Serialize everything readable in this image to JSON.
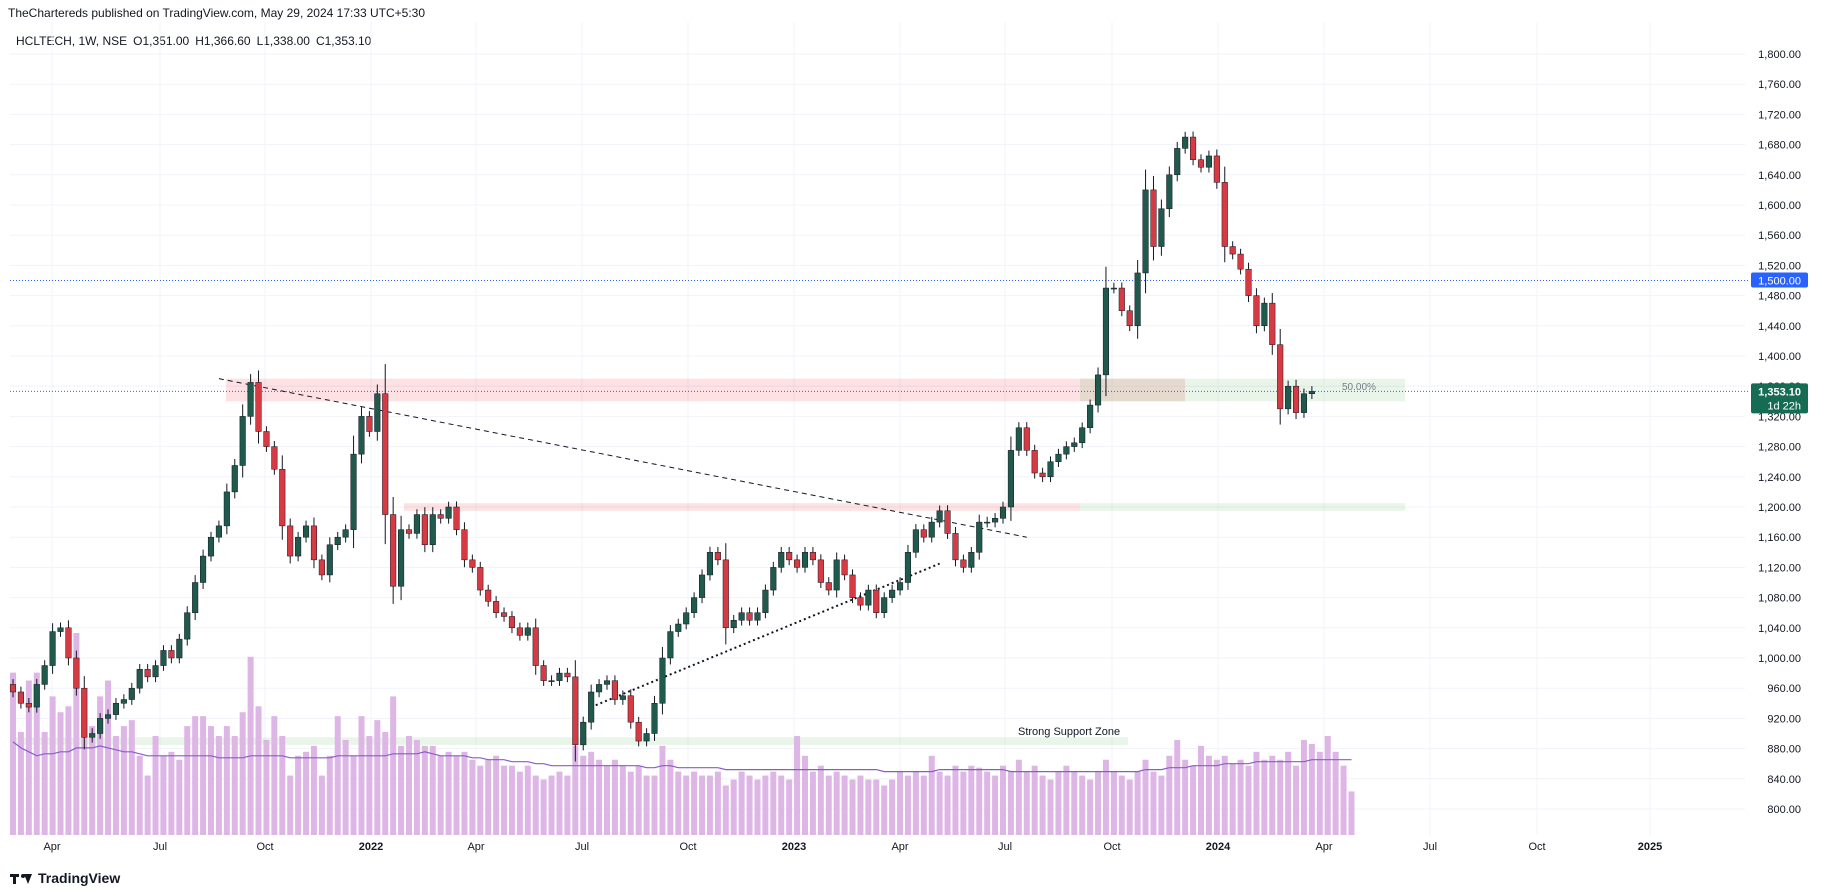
{
  "header": {
    "published_by": "TheChartereds published on TradingView.com, May 29, 2024 17:33 UTC+5:30",
    "symbol": "HCLTECH, 1W, NSE",
    "open": "O1,351.00",
    "high": "H1,366.60",
    "low": "L1,338.00",
    "close": "C1,353.10"
  },
  "footer": {
    "brand": "TradingView"
  },
  "colors": {
    "up": "#1f5a4d",
    "down": "#d63b44",
    "volume": "#ddb6e6",
    "ma": "#8a5cc8",
    "price_label": "#166b54",
    "level_label": "#2962ff"
  },
  "chart_data": {
    "type": "candlestick",
    "timeframe": "1W",
    "ylim": [
      770,
      1830
    ],
    "y_ticks": [
      800,
      840,
      880,
      920,
      960,
      1000,
      1040,
      1080,
      1120,
      1160,
      1200,
      1240,
      1280,
      1320,
      1360,
      1400,
      1440,
      1480,
      1520,
      1560,
      1600,
      1640,
      1680,
      1720,
      1760,
      1800
    ],
    "x_labels": [
      "Apr",
      "Jul",
      "Oct",
      "2022",
      "Apr",
      "Jul",
      "Oct",
      "2023",
      "Apr",
      "Jul",
      "Oct",
      "2024",
      "Apr",
      "Jul",
      "Oct",
      "2025"
    ],
    "grid": true,
    "closes": [
      955,
      940,
      935,
      965,
      990,
      1035,
      1040,
      1000,
      960,
      895,
      900,
      920,
      925,
      940,
      945,
      960,
      985,
      975,
      990,
      1010,
      1000,
      1025,
      1060,
      1100,
      1135,
      1160,
      1175,
      1220,
      1255,
      1320,
      1365,
      1300,
      1280,
      1250,
      1175,
      1135,
      1160,
      1175,
      1130,
      1110,
      1150,
      1160,
      1170,
      1270,
      1320,
      1300,
      1350,
      1190,
      1095,
      1170,
      1165,
      1190,
      1150,
      1190,
      1185,
      1200,
      1170,
      1130,
      1120,
      1090,
      1075,
      1060,
      1055,
      1040,
      1030,
      1040,
      990,
      970,
      970,
      980,
      975,
      885,
      915,
      955,
      965,
      970,
      945,
      950,
      915,
      890,
      900,
      940,
      1000,
      1035,
      1045,
      1060,
      1080,
      1110,
      1140,
      1130,
      1040,
      1050,
      1060,
      1050,
      1060,
      1090,
      1120,
      1140,
      1130,
      1120,
      1140,
      1130,
      1100,
      1090,
      1130,
      1110,
      1080,
      1070,
      1090,
      1060,
      1080,
      1090,
      1100,
      1140,
      1170,
      1160,
      1180,
      1195,
      1165,
      1130,
      1120,
      1140,
      1180,
      1180,
      1185,
      1200,
      1275,
      1305,
      1275,
      1245,
      1240,
      1260,
      1270,
      1280,
      1285,
      1305,
      1335,
      1375,
      1490,
      1490,
      1460,
      1440,
      1510,
      1620,
      1545,
      1595,
      1640,
      1675,
      1690,
      1660,
      1650,
      1665,
      1630,
      1545,
      1535,
      1515,
      1480,
      1440,
      1470,
      1415,
      1330,
      1360,
      1325,
      1350,
      1353.1
    ],
    "volumes": [
      82,
      52,
      78,
      82,
      52,
      70,
      62,
      65,
      102,
      52,
      55,
      70,
      78,
      50,
      55,
      58,
      40,
      30,
      50,
      40,
      42,
      38,
      55,
      60,
      60,
      55,
      50,
      55,
      50,
      62,
      90,
      65,
      48,
      60,
      50,
      30,
      40,
      42,
      45,
      30,
      40,
      60,
      48,
      40,
      60,
      50,
      58,
      52,
      70,
      45,
      50,
      48,
      45,
      45,
      40,
      42,
      40,
      42,
      38,
      35,
      38,
      40,
      35,
      35,
      32,
      35,
      30,
      28,
      30,
      32,
      30,
      45,
      40,
      42,
      38,
      35,
      38,
      35,
      32,
      35,
      30,
      30,
      45,
      38,
      32,
      30,
      32,
      30,
      30,
      32,
      25,
      28,
      32,
      30,
      28,
      30,
      32,
      30,
      28,
      50,
      40,
      32,
      35,
      30,
      32,
      30,
      28,
      30,
      28,
      28,
      25,
      28,
      32,
      30,
      32,
      30,
      40,
      32,
      30,
      35,
      32,
      35,
      34,
      32,
      30,
      35,
      32,
      38,
      32,
      35,
      30,
      28,
      32,
      35,
      32,
      30,
      28,
      32,
      38,
      32,
      30,
      28,
      32,
      38,
      32,
      30,
      40,
      48,
      38,
      35,
      45,
      40,
      38,
      40,
      36,
      38,
      35,
      42,
      38,
      40,
      38,
      42,
      35,
      48,
      46,
      42,
      50,
      42,
      35,
      22
    ],
    "volume_ma": [
      47,
      44,
      42,
      40,
      41,
      41,
      42,
      42,
      44,
      44,
      44,
      45,
      44,
      43,
      42,
      42,
      41,
      40,
      40,
      40,
      40,
      40,
      40,
      40,
      40,
      40,
      39,
      39,
      39,
      39,
      40,
      40,
      40,
      40,
      40,
      39,
      39,
      39,
      39,
      39,
      39,
      40,
      40,
      40,
      40,
      40,
      40,
      40,
      41,
      41,
      41,
      41,
      42,
      41,
      40,
      40,
      40,
      40,
      39,
      39,
      38,
      38,
      38,
      37,
      37,
      37,
      36,
      36,
      35,
      35,
      35,
      35,
      35,
      35,
      35,
      35,
      35,
      35,
      35,
      35,
      34,
      34,
      35,
      35,
      34,
      34,
      34,
      34,
      34,
      34,
      33,
      33,
      33,
      33,
      33,
      33,
      33,
      33,
      33,
      33,
      33,
      33,
      33,
      33,
      33,
      33,
      33,
      33,
      33,
      33,
      32,
      32,
      32,
      32,
      32,
      32,
      32,
      33,
      33,
      33,
      33,
      33,
      33,
      33,
      33,
      33,
      32,
      32,
      32,
      32,
      32,
      32,
      32,
      32,
      32,
      32,
      32,
      32,
      32,
      32,
      32,
      32,
      32,
      33,
      33,
      33,
      34,
      34,
      34,
      35,
      35,
      35,
      35,
      36,
      36,
      36,
      36,
      37,
      37,
      37,
      37,
      37,
      37,
      37,
      38,
      38,
      38,
      38,
      38,
      38
    ],
    "horizontal_levels": [
      1500,
      1353.1
    ],
    "price_label": "1,353.10",
    "countdown": "1d 22h",
    "level_label": "1,500.00",
    "zones": [
      {
        "top": 1370,
        "bottom": 1340,
        "color": "red"
      },
      {
        "top": 1205,
        "bottom": 1195,
        "color": "red"
      },
      {
        "top": 1370,
        "bottom": 1340,
        "color": "green"
      },
      {
        "top": 1205,
        "bottom": 1195,
        "color": "green"
      },
      {
        "top": 895,
        "bottom": 885,
        "color": "green"
      }
    ],
    "annotations": [
      "Strong Support Zone",
      "50.00%"
    ]
  }
}
